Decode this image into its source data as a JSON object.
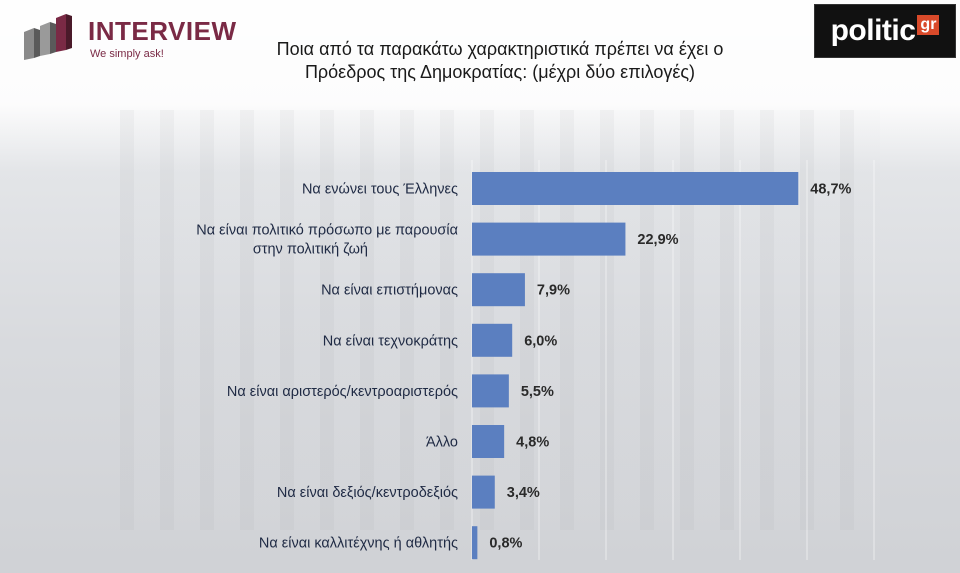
{
  "brand_left": {
    "name": "INTERVIEW",
    "tagline": "We simply ask!"
  },
  "brand_right": {
    "name": "politic",
    "suffix": "gr"
  },
  "chart_data": {
    "type": "bar",
    "orientation": "horizontal",
    "title": "Ποια από τα παρακάτω χαρακτηριστικά πρέπει να έχει ο Πρόεδρος της Δημοκρατίας: (μέχρι δύο επιλογές)",
    "categories": [
      [
        "Να ενώνει τους Έλληνες"
      ],
      [
        "Να είναι πολιτικό πρόσωπο με παρουσία",
        "στην πολιτική ζωή"
      ],
      [
        "Να είναι επιστήμονας"
      ],
      [
        "Να είναι τεχνοκράτης"
      ],
      [
        "Να είναι αριστερός/κεντροαριστερός"
      ],
      [
        "Άλλο"
      ],
      [
        "Να είναι δεξιός/κεντροδεξιός"
      ],
      [
        "Να είναι καλλιτέχνης ή αθλητής"
      ]
    ],
    "values": [
      48.7,
      22.9,
      7.9,
      6.0,
      5.5,
      4.8,
      3.4,
      0.8
    ],
    "value_labels": [
      "48,7%",
      "22,9%",
      "7,9%",
      "6,0%",
      "5,5%",
      "4,8%",
      "3,4%",
      "0,8%"
    ],
    "xlim": [
      0,
      60
    ],
    "bar_color": "#5b7fc0",
    "grid": true,
    "legend": "none"
  }
}
